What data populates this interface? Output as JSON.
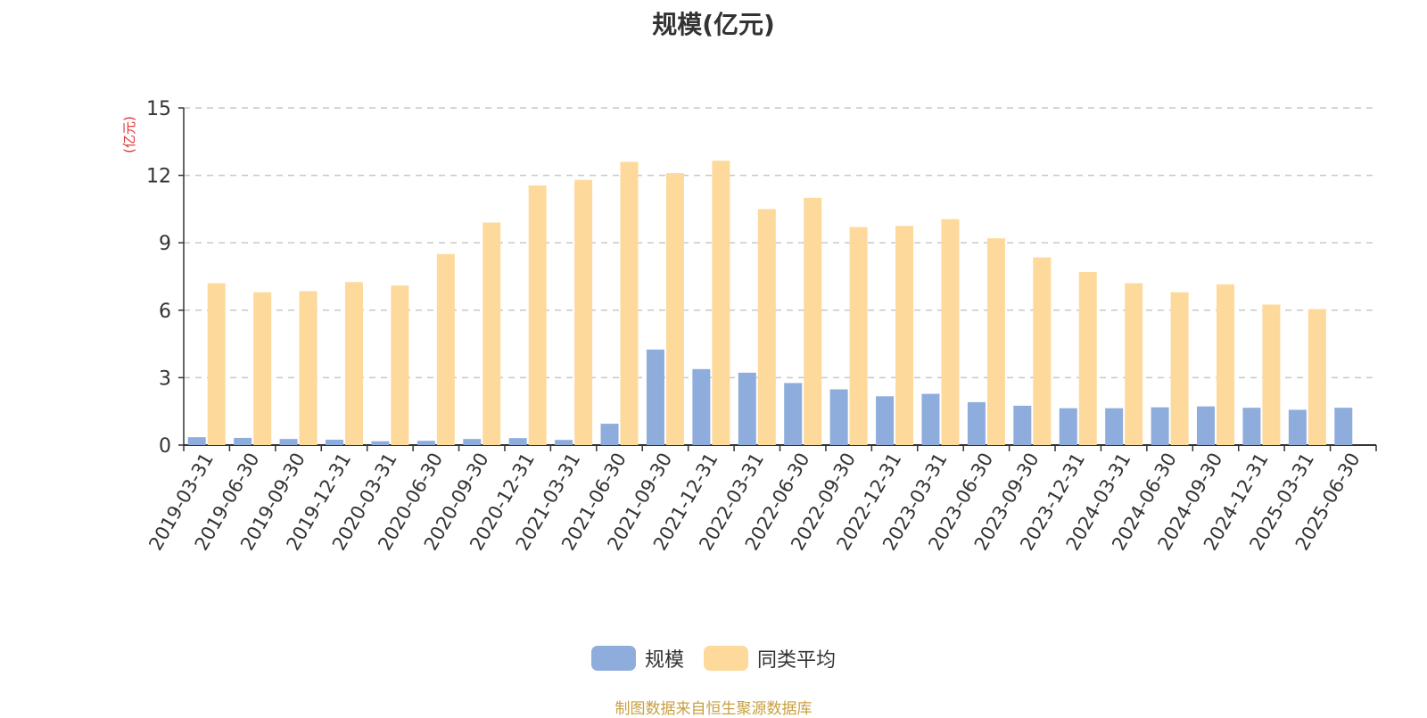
{
  "chart_data": {
    "type": "bar",
    "title": "规模(亿元)",
    "ylabel": "(亿元)",
    "ylim": [
      0,
      15
    ],
    "yticks": [
      0,
      3,
      6,
      9,
      12,
      15
    ],
    "grid": true,
    "legend_position": "bottom",
    "categories": [
      "2019-03-31",
      "2019-06-30",
      "2019-09-30",
      "2019-12-31",
      "2020-03-31",
      "2020-06-30",
      "2020-09-30",
      "2020-12-31",
      "2021-03-31",
      "2021-06-30",
      "2021-09-30",
      "2021-12-31",
      "2022-03-31",
      "2022-06-30",
      "2022-09-30",
      "2022-12-31",
      "2023-03-31",
      "2023-06-30",
      "2023-09-30",
      "2023-12-31",
      "2024-03-31",
      "2024-06-30",
      "2024-09-30",
      "2024-12-31",
      "2025-03-31",
      "2025-06-30"
    ],
    "series": [
      {
        "name": "规模",
        "color": "#8eaddc",
        "values": [
          0.35,
          0.32,
          0.27,
          0.24,
          0.17,
          0.19,
          0.27,
          0.31,
          0.23,
          0.95,
          4.25,
          3.38,
          3.22,
          2.76,
          2.48,
          2.17,
          2.28,
          1.91,
          1.75,
          1.64,
          1.64,
          1.68,
          1.72,
          1.66,
          1.57,
          1.66
        ]
      },
      {
        "name": "同类平均",
        "color": "#fed99c",
        "values": [
          7.2,
          6.8,
          6.85,
          7.25,
          7.1,
          8.5,
          9.9,
          11.55,
          11.8,
          12.6,
          12.1,
          12.65,
          10.5,
          11.0,
          9.7,
          9.75,
          10.05,
          9.2,
          8.35,
          7.7,
          7.2,
          6.8,
          7.15,
          6.25,
          6.05,
          null
        ]
      }
    ]
  },
  "footer": "制图数据来自恒生聚源数据库"
}
